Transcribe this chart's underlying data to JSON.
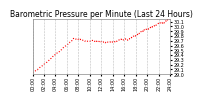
{
  "title": "Barometric Pressure per Minute (Last 24 Hours)",
  "line_color": "#ff0000",
  "background_color": "#ffffff",
  "grid_color": "#aaaaaa",
  "ylim": [
    29.0,
    30.15
  ],
  "yticks": [
    29.0,
    29.1,
    29.2,
    29.3,
    29.4,
    29.5,
    29.6,
    29.7,
    29.8,
    29.9,
    30.0,
    30.1
  ],
  "num_points": 1440,
  "title_fontsize": 5.5,
  "tick_fontsize": 3.5,
  "line_width": 0.8
}
